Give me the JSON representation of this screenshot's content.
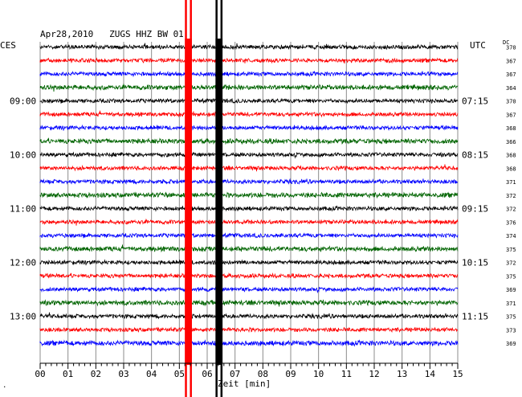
{
  "header": {
    "title": "Apr28,2010   ZUGS HHZ BW 01",
    "left_label": "CES",
    "right_label": "UTC",
    "dc_label": "DC",
    "corner_mark": "."
  },
  "chart_data": {
    "type": "line",
    "title": "Apr28,2010   ZUGS HHZ BW 01",
    "xlabel": "Zeit [min]",
    "ylabel": "",
    "xlim": [
      0,
      15
    ],
    "x_ticks": [
      "00",
      "01",
      "02",
      "03",
      "04",
      "05",
      "06",
      "07",
      "08",
      "09",
      "10",
      "11",
      "12",
      "13",
      "14",
      "15"
    ],
    "grid": true,
    "trace_colors": [
      "#000000",
      "#ff0000",
      "#0000ff",
      "#006400"
    ],
    "left_time_labels": [
      {
        "row": 4,
        "label": "09:00"
      },
      {
        "row": 8,
        "label": "10:00"
      },
      {
        "row": 12,
        "label": "11:00"
      },
      {
        "row": 16,
        "label": "12:00"
      },
      {
        "row": 20,
        "label": "13:00"
      }
    ],
    "right_time_labels": [
      {
        "row": 4,
        "label": "07:15"
      },
      {
        "row": 8,
        "label": "08:15"
      },
      {
        "row": 12,
        "label": "09:15"
      },
      {
        "row": 16,
        "label": "10:15"
      },
      {
        "row": 20,
        "label": "11:15"
      }
    ],
    "dc_values": [
      370,
      367,
      367,
      364,
      370,
      367,
      368,
      366,
      368,
      368,
      371,
      372,
      372,
      376,
      374,
      375,
      372,
      375,
      369,
      371,
      375,
      373,
      369
    ],
    "trace_amplitude": [
      2.2,
      2.2,
      2.2,
      2.6,
      2.2,
      2.2,
      2.2,
      2.6,
      2.2,
      2.2,
      2.2,
      2.6,
      2.2,
      2.2,
      2.2,
      2.6,
      2.2,
      2.2,
      2.2,
      2.6,
      2.2,
      2.2,
      2.6
    ],
    "vertical_markers": [
      {
        "color": "#ff0000",
        "x_min": [
          5.2,
          5.45
        ]
      },
      {
        "color": "#000000",
        "x_min": [
          6.3,
          6.55
        ]
      }
    ]
  }
}
